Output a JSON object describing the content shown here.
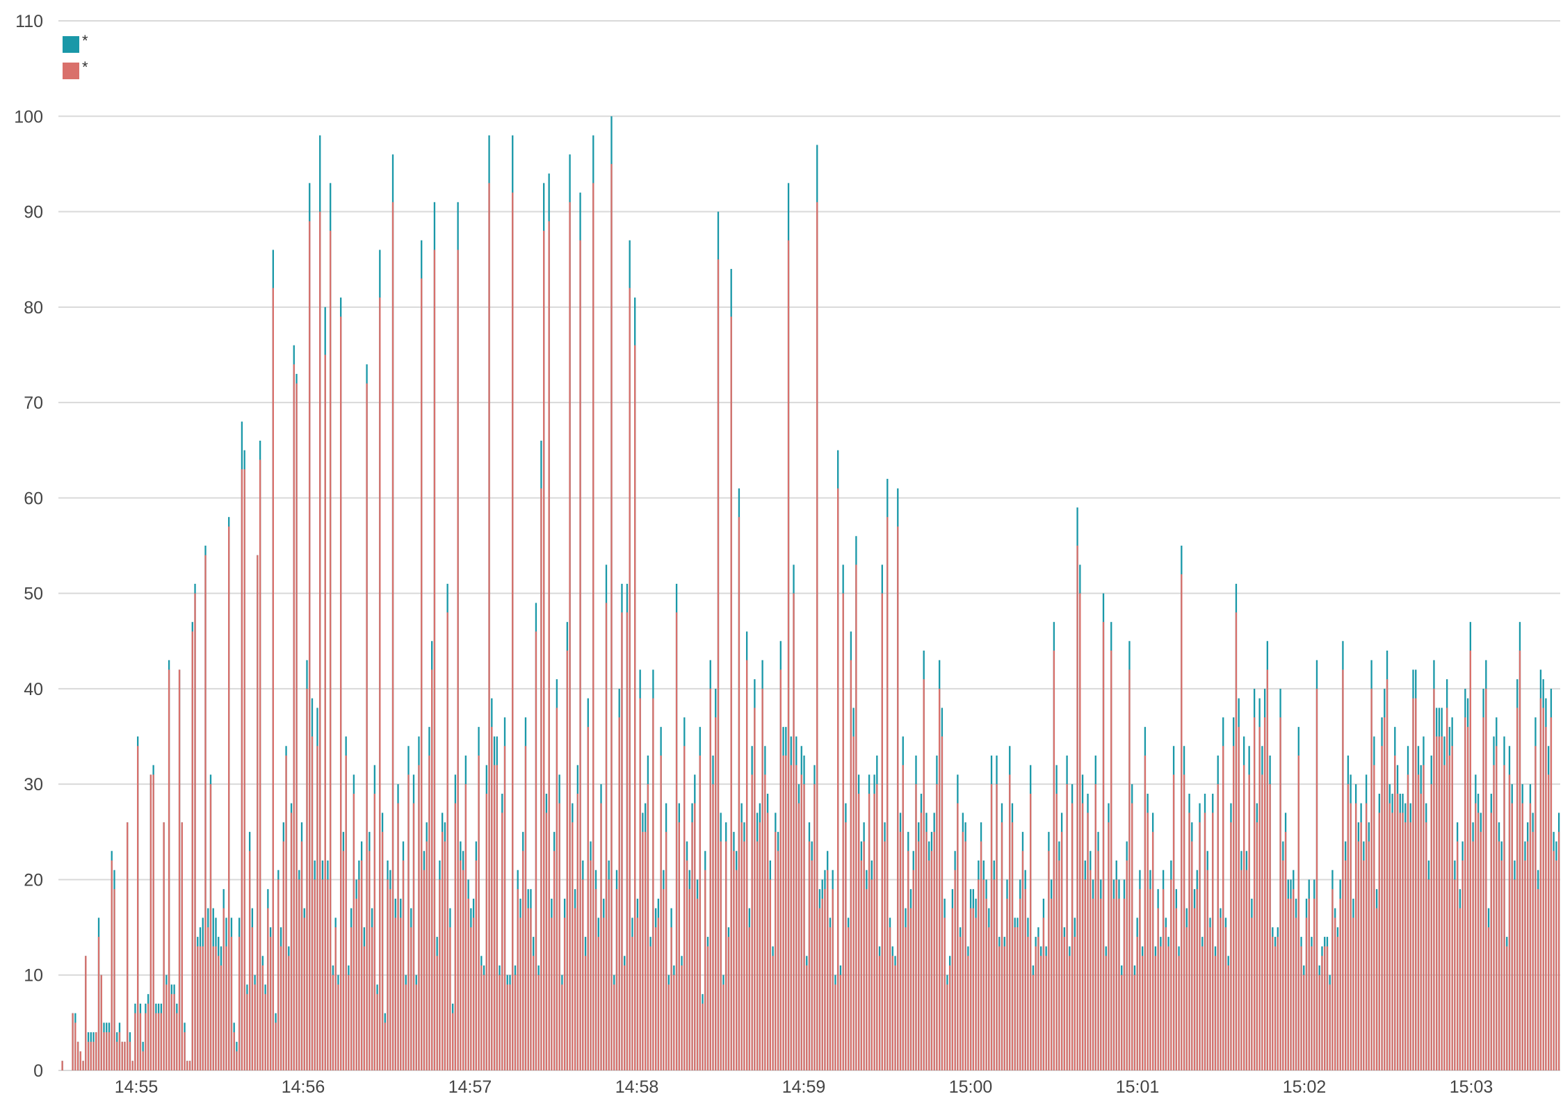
{
  "colors": {
    "series_a": "#1a98a8",
    "series_b": "#d9706b",
    "grid": "#d9d9d9",
    "text": "#444444"
  },
  "chart_data": {
    "type": "bar",
    "stacking": "overlay",
    "title": "",
    "xlabel": "",
    "ylabel": "",
    "ylim": [
      0,
      110
    ],
    "y_ticks": [
      "0",
      "10",
      "20",
      "30",
      "40",
      "50",
      "60",
      "70",
      "80",
      "90",
      "100",
      "110"
    ],
    "x_tick_labels": [
      "14:55",
      "14:56",
      "14:57",
      "14:58",
      "14:59",
      "15:00",
      "15:01",
      "15:02",
      "15:03"
    ],
    "x_range": [
      "14:54:32",
      "15:03:32"
    ],
    "grid": true,
    "legend_position": "top-left",
    "legend": [
      {
        "label": "*",
        "color": "#1a98a8"
      },
      {
        "label": "*",
        "color": "#d9706b"
      }
    ],
    "bin_seconds": 1,
    "series": [
      {
        "name": "*",
        "color": "#1a98a8",
        "values": [
          0,
          1,
          0,
          0,
          0,
          6,
          6,
          3,
          2,
          1,
          12,
          4,
          4,
          4,
          4,
          16,
          10,
          5,
          5,
          5,
          23,
          21,
          4,
          5,
          3,
          3,
          26,
          4,
          1,
          7,
          35,
          7,
          3,
          7,
          8,
          31,
          32,
          7,
          7,
          7,
          26,
          10,
          43,
          9,
          9,
          7,
          42,
          26,
          5,
          1,
          1,
          47,
          51,
          14,
          15,
          16,
          55,
          17,
          31,
          17,
          16,
          14,
          13,
          19,
          16,
          58,
          16,
          5,
          3,
          16,
          68,
          65,
          9,
          25,
          17,
          10,
          54,
          66,
          12,
          9,
          19,
          15,
          86,
          6,
          21,
          15,
          26,
          34,
          13,
          28,
          76,
          73,
          21,
          26,
          17,
          43,
          93,
          39,
          22,
          38,
          98,
          22,
          80,
          22,
          93,
          11,
          16,
          10,
          81,
          25,
          35,
          11,
          17,
          31,
          20,
          22,
          24,
          15,
          74,
          25,
          17,
          32,
          9,
          86,
          27,
          6,
          22,
          21,
          96,
          18,
          30,
          18,
          24,
          10,
          34,
          17,
          31,
          10,
          35,
          87,
          23,
          26,
          36,
          45,
          91,
          14,
          22,
          27,
          26,
          51,
          17,
          7,
          31,
          91,
          24,
          23,
          33,
          20,
          17,
          18,
          24,
          36,
          12,
          11,
          32,
          98,
          39,
          35,
          35,
          11,
          29,
          37,
          10,
          10,
          98,
          11,
          21,
          18,
          25,
          37,
          19,
          19,
          14,
          49,
          11,
          66,
          93,
          29,
          94,
          18,
          25,
          41,
          31,
          10,
          18,
          47,
          96,
          28,
          19,
          32,
          92,
          22,
          14,
          39,
          24,
          98,
          21,
          16,
          30,
          18,
          53,
          22,
          100,
          10,
          21,
          40,
          51,
          12,
          51,
          87,
          16,
          81,
          18,
          42,
          27,
          28,
          33,
          14,
          42,
          17,
          18,
          36,
          21,
          28,
          10,
          17,
          11,
          51,
          28,
          12,
          37,
          24,
          21,
          28,
          31,
          20,
          36,
          8,
          23,
          14,
          43,
          33,
          40,
          90,
          27,
          10,
          26,
          15,
          84,
          25,
          23,
          61,
          28,
          26,
          46,
          17,
          34,
          41,
          27,
          28,
          43,
          34,
          29,
          22,
          13,
          27,
          25,
          45,
          36,
          36,
          93,
          35,
          53,
          35,
          30,
          34,
          33,
          12,
          26,
          24,
          32,
          97,
          19,
          20,
          21,
          23,
          16,
          21,
          10,
          65,
          11,
          53,
          28,
          16,
          46,
          38,
          56,
          31,
          24,
          26,
          21,
          31,
          22,
          31,
          33,
          13,
          53,
          26,
          62,
          16,
          13,
          12,
          61,
          27,
          35,
          17,
          25,
          19,
          23,
          33,
          26,
          29,
          44,
          27,
          24,
          25,
          27,
          33,
          43,
          38,
          18,
          10,
          12,
          19,
          23,
          31,
          15,
          27,
          26,
          13,
          19,
          19,
          18,
          22,
          26,
          22,
          20,
          17,
          33,
          22,
          33,
          14,
          28,
          14,
          20,
          34,
          28,
          16,
          16,
          20,
          25,
          21,
          16,
          32,
          11,
          14,
          15,
          13,
          18,
          13,
          25,
          20,
          47,
          32,
          24,
          27,
          15,
          33,
          13,
          30,
          16,
          59,
          53,
          31,
          22,
          29,
          23,
          20,
          33,
          25,
          20,
          50,
          13,
          28,
          47,
          20,
          22,
          20,
          11,
          20,
          24,
          45,
          30,
          11,
          16,
          21,
          13,
          36,
          29,
          21,
          27,
          13,
          19,
          14,
          21,
          16,
          14,
          22,
          34,
          19,
          13,
          55,
          34,
          17,
          29,
          26,
          19,
          21,
          28,
          14,
          29,
          23,
          16,
          29,
          13,
          33,
          17,
          37,
          16,
          12,
          28,
          37,
          51,
          39,
          23,
          35,
          23,
          34,
          18,
          40,
          28,
          39,
          34,
          40,
          45,
          33,
          15,
          14,
          15,
          40,
          24,
          27,
          20,
          20,
          21,
          18,
          36,
          14,
          11,
          18,
          20,
          14,
          20,
          43,
          11,
          13,
          14,
          14,
          10,
          21,
          17,
          15,
          20,
          45,
          24,
          33,
          31,
          18,
          30,
          26,
          28,
          24,
          31,
          26,
          43,
          35,
          19,
          29,
          37,
          40,
          44,
          30,
          29,
          36,
          32,
          29,
          29,
          28,
          34,
          28,
          42,
          42,
          34,
          32,
          35,
          28,
          22,
          33,
          43,
          38,
          38,
          38,
          35,
          41,
          36,
          37,
          22,
          26,
          19,
          24,
          40,
          39,
          47,
          26,
          31,
          29,
          27,
          40,
          43,
          17,
          29,
          35,
          37,
          26,
          24,
          35,
          14,
          34,
          30,
          22,
          41,
          47,
          30,
          24,
          26,
          30,
          27,
          37,
          21,
          42,
          41,
          39,
          34,
          40,
          25,
          24,
          27
        ]
      },
      {
        "name": "*",
        "color": "#d9706b",
        "values": [
          0,
          1,
          0,
          0,
          0,
          6,
          5,
          3,
          2,
          1,
          12,
          3,
          3,
          3,
          4,
          14,
          10,
          4,
          4,
          4,
          22,
          19,
          3,
          4,
          3,
          3,
          26,
          3,
          1,
          6,
          34,
          6,
          2,
          6,
          7,
          31,
          31,
          6,
          6,
          6,
          26,
          9,
          42,
          8,
          8,
          6,
          42,
          26,
          4,
          1,
          1,
          46,
          50,
          13,
          13,
          13,
          54,
          15,
          30,
          13,
          13,
          12,
          11,
          17,
          13,
          57,
          14,
          4,
          2,
          14,
          63,
          63,
          8,
          23,
          15,
          9,
          54,
          64,
          11,
          8,
          17,
          14,
          82,
          5,
          20,
          13,
          24,
          33,
          12,
          27,
          74,
          72,
          20,
          24,
          16,
          40,
          89,
          35,
          20,
          34,
          90,
          20,
          75,
          20,
          88,
          10,
          15,
          9,
          79,
          23,
          33,
          10,
          15,
          29,
          18,
          20,
          22,
          13,
          72,
          23,
          15,
          29,
          8,
          81,
          25,
          5,
          20,
          19,
          91,
          16,
          28,
          16,
          22,
          9,
          31,
          15,
          28,
          9,
          32,
          83,
          21,
          24,
          33,
          42,
          86,
          12,
          20,
          25,
          24,
          48,
          15,
          6,
          28,
          86,
          22,
          21,
          30,
          18,
          15,
          16,
          22,
          33,
          11,
          10,
          29,
          93,
          36,
          32,
          32,
          10,
          27,
          34,
          9,
          9,
          92,
          10,
          19,
          16,
          23,
          34,
          17,
          17,
          12,
          46,
          10,
          61,
          88,
          27,
          89,
          16,
          23,
          38,
          28,
          9,
          16,
          44,
          91,
          26,
          17,
          29,
          87,
          20,
          12,
          36,
          22,
          93,
          19,
          14,
          28,
          16,
          49,
          20,
          95,
          9,
          19,
          37,
          48,
          11,
          48,
          82,
          14,
          76,
          16,
          39,
          25,
          25,
          30,
          13,
          39,
          15,
          16,
          33,
          19,
          25,
          9,
          15,
          10,
          48,
          26,
          11,
          34,
          22,
          19,
          26,
          28,
          18,
          33,
          7,
          21,
          13,
          40,
          30,
          37,
          85,
          24,
          9,
          24,
          14,
          79,
          23,
          21,
          58,
          26,
          24,
          43,
          15,
          31,
          38,
          24,
          26,
          40,
          31,
          27,
          20,
          12,
          25,
          23,
          42,
          33,
          33,
          87,
          32,
          50,
          32,
          28,
          31,
          30,
          11,
          24,
          22,
          30,
          91,
          17,
          18,
          19,
          21,
          15,
          19,
          9,
          61,
          10,
          50,
          26,
          15,
          43,
          35,
          53,
          29,
          22,
          24,
          19,
          29,
          20,
          29,
          30,
          12,
          50,
          24,
          58,
          15,
          12,
          11,
          57,
          25,
          32,
          15,
          23,
          17,
          21,
          30,
          24,
          27,
          41,
          25,
          22,
          23,
          25,
          30,
          40,
          35,
          16,
          9,
          11,
          17,
          21,
          28,
          14,
          25,
          24,
          12,
          17,
          17,
          16,
          20,
          24,
          20,
          18,
          15,
          30,
          20,
          30,
          13,
          26,
          13,
          18,
          31,
          26,
          15,
          15,
          18,
          23,
          19,
          14,
          29,
          10,
          13,
          14,
          12,
          16,
          12,
          23,
          18,
          44,
          29,
          22,
          25,
          14,
          30,
          12,
          28,
          14,
          55,
          50,
          28,
          20,
          27,
          21,
          18,
          30,
          23,
          18,
          47,
          12,
          26,
          44,
          18,
          20,
          18,
          10,
          18,
          22,
          42,
          28,
          10,
          14,
          19,
          12,
          33,
          27,
          19,
          25,
          12,
          17,
          13,
          19,
          15,
          13,
          20,
          31,
          17,
          12,
          52,
          31,
          15,
          27,
          24,
          17,
          19,
          26,
          13,
          27,
          21,
          15,
          27,
          12,
          30,
          16,
          34,
          15,
          11,
          26,
          34,
          48,
          36,
          21,
          32,
          21,
          31,
          16,
          37,
          26,
          36,
          31,
          37,
          42,
          30,
          14,
          13,
          14,
          37,
          22,
          25,
          18,
          18,
          19,
          16,
          33,
          13,
          10,
          16,
          18,
          13,
          18,
          40,
          10,
          12,
          13,
          13,
          9,
          19,
          16,
          14,
          18,
          42,
          22,
          30,
          28,
          16,
          28,
          24,
          26,
          22,
          28,
          24,
          40,
          32,
          17,
          27,
          34,
          37,
          41,
          28,
          27,
          33,
          29,
          27,
          27,
          26,
          31,
          26,
          39,
          39,
          31,
          29,
          32,
          26,
          20,
          30,
          40,
          35,
          35,
          35,
          32,
          38,
          33,
          34,
          20,
          24,
          17,
          22,
          37,
          36,
          44,
          24,
          28,
          27,
          25,
          37,
          40,
          15,
          27,
          32,
          34,
          24,
          22,
          32,
          13,
          31,
          28,
          20,
          38,
          44,
          28,
          22,
          24,
          28,
          25,
          34,
          19,
          39,
          38,
          36,
          31,
          37,
          23,
          22,
          25
        ]
      }
    ]
  }
}
